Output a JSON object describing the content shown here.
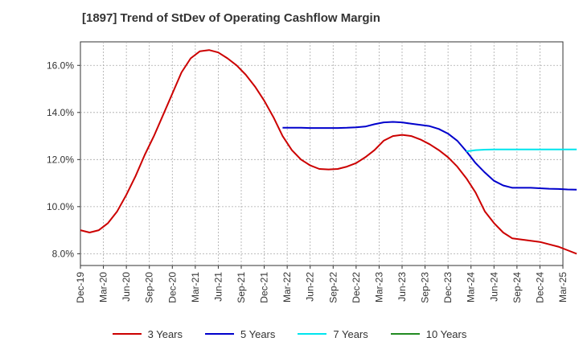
{
  "chart_data": {
    "type": "line",
    "title": "[1897]  Trend of StDev of Operating Cashflow Margin",
    "xlabel": "",
    "ylabel": "",
    "x_ticks": [
      "Dec-19",
      "Mar-20",
      "Jun-20",
      "Sep-20",
      "Dec-20",
      "Mar-21",
      "Jun-21",
      "Sep-21",
      "Dec-21",
      "Mar-22",
      "Jun-22",
      "Sep-22",
      "Dec-22",
      "Mar-23",
      "Jun-23",
      "Sep-23",
      "Dec-23",
      "Mar-24",
      "Jun-24",
      "Sep-24",
      "Dec-24",
      "Mar-25"
    ],
    "y_ticks": [
      "8.0%",
      "10.0%",
      "12.0%",
      "14.0%",
      "16.0%"
    ],
    "y_tick_values": [
      8,
      10,
      12,
      14,
      16
    ],
    "ylim": [
      7.5,
      17.0
    ],
    "grid": true,
    "legend_position": "bottom",
    "series": [
      {
        "name": "3 Years",
        "color": "#cc0000",
        "points": [
          [
            0,
            9.0
          ],
          [
            1,
            8.9
          ],
          [
            2,
            9.0
          ],
          [
            3,
            9.3
          ],
          [
            4,
            9.8
          ],
          [
            5,
            10.5
          ],
          [
            6,
            11.3
          ],
          [
            7,
            12.2
          ],
          [
            8,
            13.0
          ],
          [
            9,
            13.9
          ],
          [
            10,
            14.8
          ],
          [
            11,
            15.7
          ],
          [
            12,
            16.3
          ],
          [
            13,
            16.6
          ],
          [
            14,
            16.65
          ],
          [
            15,
            16.55
          ],
          [
            16,
            16.3
          ],
          [
            17,
            16.0
          ],
          [
            18,
            15.6
          ],
          [
            19,
            15.1
          ],
          [
            20,
            14.5
          ],
          [
            21,
            13.8
          ],
          [
            22,
            13.0
          ],
          [
            23,
            12.4
          ],
          [
            24,
            12.0
          ],
          [
            25,
            11.75
          ],
          [
            26,
            11.6
          ],
          [
            27,
            11.58
          ],
          [
            28,
            11.6
          ],
          [
            29,
            11.7
          ],
          [
            30,
            11.85
          ],
          [
            31,
            12.1
          ],
          [
            32,
            12.4
          ],
          [
            33,
            12.8
          ],
          [
            34,
            13.0
          ],
          [
            35,
            13.05
          ],
          [
            36,
            13.0
          ],
          [
            37,
            12.85
          ],
          [
            38,
            12.65
          ],
          [
            39,
            12.4
          ],
          [
            40,
            12.1
          ],
          [
            41,
            11.7
          ],
          [
            42,
            11.2
          ],
          [
            43,
            10.6
          ],
          [
            44,
            9.8
          ],
          [
            45,
            9.3
          ],
          [
            46,
            8.9
          ],
          [
            47,
            8.65
          ],
          [
            48,
            8.6
          ],
          [
            49,
            8.55
          ],
          [
            50,
            8.5
          ],
          [
            51,
            8.4
          ],
          [
            52,
            8.3
          ],
          [
            53,
            8.15
          ],
          [
            54,
            8.0
          ]
        ]
      },
      {
        "name": "5 Years",
        "color": "#0000cc",
        "points": [
          [
            22,
            13.35
          ],
          [
            23,
            13.35
          ],
          [
            24,
            13.35
          ],
          [
            25,
            13.34
          ],
          [
            26,
            13.34
          ],
          [
            27,
            13.34
          ],
          [
            28,
            13.34
          ],
          [
            29,
            13.35
          ],
          [
            30,
            13.37
          ],
          [
            31,
            13.4
          ],
          [
            32,
            13.5
          ],
          [
            33,
            13.58
          ],
          [
            34,
            13.6
          ],
          [
            35,
            13.58
          ],
          [
            36,
            13.52
          ],
          [
            37,
            13.47
          ],
          [
            38,
            13.42
          ],
          [
            39,
            13.3
          ],
          [
            40,
            13.1
          ],
          [
            41,
            12.8
          ],
          [
            42,
            12.35
          ],
          [
            43,
            11.85
          ],
          [
            44,
            11.45
          ],
          [
            45,
            11.1
          ],
          [
            46,
            10.9
          ],
          [
            47,
            10.8
          ],
          [
            48,
            10.8
          ],
          [
            49,
            10.8
          ],
          [
            50,
            10.78
          ],
          [
            51,
            10.76
          ],
          [
            52,
            10.75
          ],
          [
            53,
            10.73
          ],
          [
            54,
            10.72
          ]
        ]
      },
      {
        "name": "7 Years",
        "color": "#00e5ee",
        "points": [
          [
            42,
            12.35
          ],
          [
            43,
            12.4
          ],
          [
            44,
            12.42
          ],
          [
            45,
            12.43
          ],
          [
            46,
            12.43
          ],
          [
            47,
            12.43
          ],
          [
            48,
            12.43
          ],
          [
            49,
            12.43
          ],
          [
            50,
            12.43
          ],
          [
            51,
            12.43
          ],
          [
            52,
            12.43
          ],
          [
            53,
            12.43
          ],
          [
            54,
            12.43
          ]
        ]
      },
      {
        "name": "10 Years",
        "color": "#228b22",
        "points": []
      }
    ]
  }
}
